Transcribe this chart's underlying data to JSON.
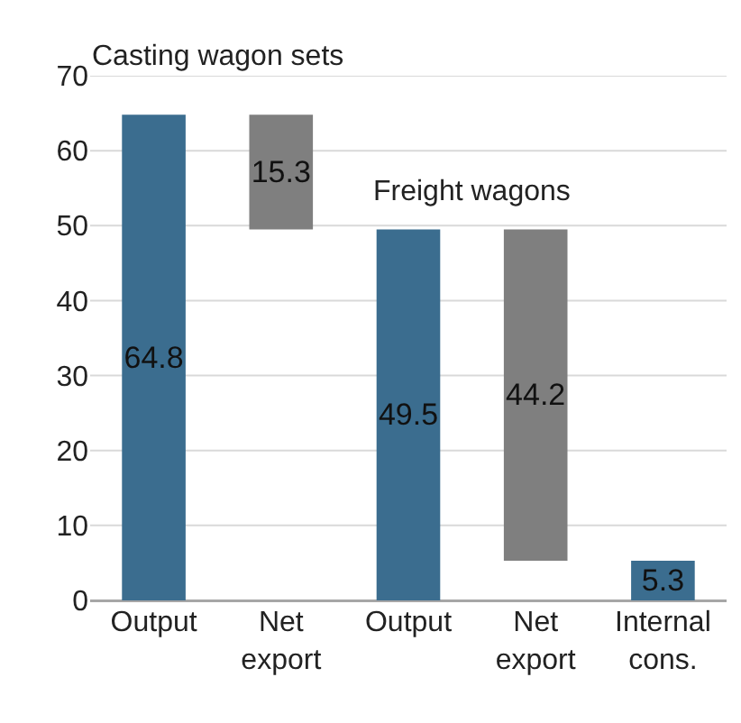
{
  "chart_data": {
    "type": "bar",
    "categories": [
      "Output",
      "Net export",
      "Output",
      "Net export",
      "Internal cons."
    ],
    "values": [
      64.8,
      15.3,
      49.5,
      44.2,
      5.3
    ],
    "base": [
      0,
      49.5,
      0,
      5.3,
      0
    ],
    "colors": [
      "#3b6d8f",
      "#7f7f7f",
      "#3b6d8f",
      "#7f7f7f",
      "#3b6d8f"
    ],
    "data_labels": true,
    "annotations": [
      "Casting wagon sets",
      "Freight wagons"
    ],
    "ylim": [
      0,
      70
    ],
    "yticks": [
      0,
      10,
      20,
      30,
      40,
      50,
      60,
      70
    ],
    "grid": "y"
  }
}
